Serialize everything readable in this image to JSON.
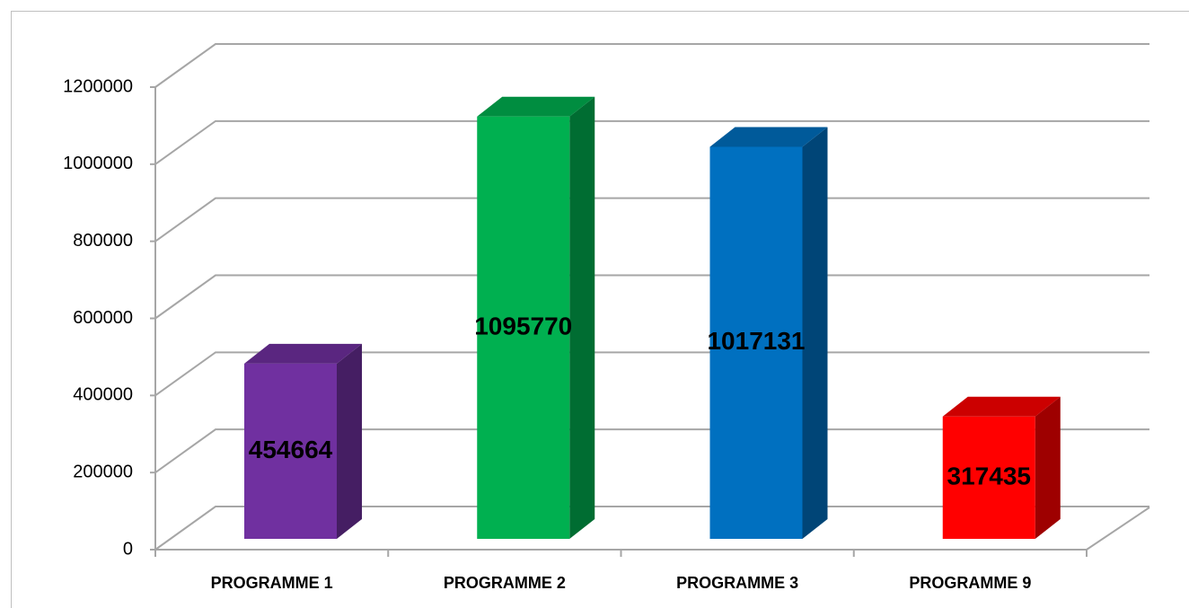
{
  "chart_data": {
    "type": "bar3d",
    "categories": [
      "PROGRAMME 1",
      "PROGRAMME 2",
      "PROGRAMME 3",
      "PROGRAMME 9"
    ],
    "values": [
      454664,
      1095770,
      1017131,
      317435
    ],
    "colors": [
      "#7030a0",
      "#00b050",
      "#0070c0",
      "#ff0000"
    ],
    "ylim": [
      0,
      1200000
    ],
    "yticks": [
      0,
      200000,
      400000,
      600000,
      800000,
      1000000,
      1200000
    ],
    "grid": true
  }
}
